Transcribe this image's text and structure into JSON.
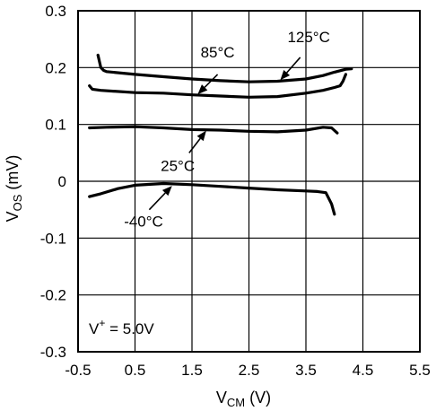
{
  "chart_data": {
    "type": "line",
    "xlabel_main": "V",
    "xlabel_sub": "CM",
    "xlabel_unit": " (V)",
    "ylabel_main": "V",
    "ylabel_sub": "OS",
    "ylabel_unit": " (mV)",
    "xlim": [
      -0.5,
      5.5
    ],
    "ylim": [
      -0.3,
      0.3
    ],
    "x_ticks": [
      "-0.5",
      "0.5",
      "1.5",
      "2.5",
      "3.5",
      "4.5",
      "5.5"
    ],
    "y_ticks": [
      "0.3",
      "0.2",
      "0.1",
      "0",
      "-0.1",
      "-0.2",
      "-0.3"
    ],
    "grid": true,
    "annotation": {
      "prefix": "V",
      "sup": "+",
      "value": " = 5.0V"
    },
    "series": [
      {
        "name": "125°C",
        "x": [
          -0.15,
          -0.1,
          -0.05,
          0.0,
          0.5,
          1.0,
          1.5,
          2.0,
          2.5,
          3.0,
          3.5,
          3.8,
          4.0,
          4.2,
          4.3
        ],
        "y": [
          0.222,
          0.2,
          0.195,
          0.193,
          0.188,
          0.184,
          0.18,
          0.177,
          0.175,
          0.176,
          0.18,
          0.186,
          0.192,
          0.197,
          0.198
        ]
      },
      {
        "name": "85°C",
        "x": [
          -0.3,
          -0.25,
          -0.1,
          0.5,
          1.0,
          1.5,
          2.0,
          2.5,
          3.0,
          3.5,
          3.8,
          4.0,
          4.1,
          4.15,
          4.2
        ],
        "y": [
          0.168,
          0.162,
          0.16,
          0.156,
          0.155,
          0.152,
          0.15,
          0.148,
          0.149,
          0.155,
          0.16,
          0.165,
          0.168,
          0.176,
          0.188
        ]
      },
      {
        "name": "25°C",
        "x": [
          -0.3,
          0.0,
          0.5,
          1.0,
          1.5,
          2.0,
          2.5,
          3.0,
          3.5,
          3.8,
          3.95,
          4.05
        ],
        "y": [
          0.094,
          0.095,
          0.096,
          0.094,
          0.091,
          0.09,
          0.088,
          0.087,
          0.09,
          0.095,
          0.094,
          0.085
        ]
      },
      {
        "name": "-40°C",
        "x": [
          -0.3,
          -0.1,
          0.2,
          0.5,
          1.0,
          1.5,
          2.0,
          2.5,
          3.0,
          3.5,
          3.7,
          3.85,
          3.95,
          4.0
        ],
        "y": [
          -0.027,
          -0.022,
          -0.013,
          -0.007,
          -0.004,
          -0.006,
          -0.009,
          -0.012,
          -0.015,
          -0.017,
          -0.018,
          -0.02,
          -0.04,
          -0.058
        ]
      }
    ],
    "labels": [
      {
        "text": "125°C",
        "series": "125°C",
        "text_x": 3.55,
        "text_y": 0.245,
        "arrow_from": [
          3.4,
          0.218
        ],
        "arrow_to": [
          3.05,
          0.178
        ]
      },
      {
        "text": "85°C",
        "series": "85°C",
        "text_x": 1.95,
        "text_y": 0.218,
        "arrow_from": [
          1.95,
          0.188
        ],
        "arrow_to": [
          1.6,
          0.153
        ]
      },
      {
        "text": "25°C",
        "series": "25°C",
        "text_x": 1.25,
        "text_y": 0.018,
        "arrow_from": [
          1.45,
          0.05
        ],
        "arrow_to": [
          1.75,
          0.089
        ]
      },
      {
        "text": "-40°C",
        "series": "-40°C",
        "text_x": 0.65,
        "text_y": -0.08,
        "arrow_from": [
          0.75,
          -0.05
        ],
        "arrow_to": [
          1.15,
          -0.008
        ]
      }
    ]
  }
}
